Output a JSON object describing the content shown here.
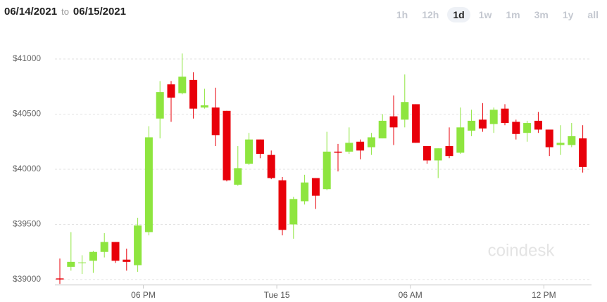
{
  "header": {
    "from": "06/14/2021",
    "to": "to",
    "until": "06/15/2021",
    "ranges": [
      "1h",
      "12h",
      "1d",
      "1w",
      "1m",
      "3m",
      "1y",
      "all"
    ],
    "selected": 2
  },
  "watermark": "coindesk",
  "chart_data": {
    "type": "candlestick",
    "categories": [
      null,
      null,
      null,
      null,
      null,
      null,
      null,
      "06 PM",
      null,
      null,
      null,
      null,
      null,
      null,
      null,
      null,
      null,
      null,
      null,
      "Tue 15",
      null,
      null,
      null,
      null,
      null,
      null,
      null,
      null,
      null,
      null,
      null,
      "06 AM",
      null,
      null,
      null,
      null,
      null,
      null,
      null,
      null,
      null,
      null,
      null,
      "12 PM",
      null,
      null,
      null,
      null
    ],
    "open": [
      39010,
      39115,
      39150,
      39170,
      39250,
      39340,
      39180,
      39130,
      39430,
      40460,
      40770,
      40690,
      40810,
      40560,
      40560,
      40530,
      39860,
      40050,
      40270,
      40130,
      39900,
      39500,
      39710,
      39920,
      39820,
      40160,
      40160,
      40250,
      40200,
      40280,
      40480,
      40450,
      40590,
      40210,
      40080,
      40210,
      40150,
      40350,
      40450,
      40410,
      40550,
      40430,
      40330,
      40440,
      40360,
      40220,
      40220,
      40280
    ],
    "high": [
      39190,
      39430,
      39220,
      39260,
      39420,
      39340,
      39280,
      39560,
      40390,
      40800,
      40800,
      41050,
      40880,
      40730,
      40740,
      40530,
      40210,
      40330,
      40270,
      40170,
      39930,
      39750,
      39950,
      39920,
      40340,
      40230,
      40380,
      40270,
      40330,
      40500,
      40670,
      40860,
      40590,
      40210,
      40190,
      40380,
      40560,
      40540,
      40600,
      40560,
      40590,
      40450,
      40440,
      40520,
      40360,
      40400,
      40420,
      40400
    ],
    "low": [
      38960,
      39080,
      39050,
      39060,
      39200,
      39150,
      39080,
      39070,
      39400,
      40280,
      40430,
      40680,
      40460,
      40550,
      40210,
      39890,
      39850,
      40040,
      40100,
      39910,
      39400,
      39370,
      39680,
      39640,
      39810,
      39980,
      40140,
      40090,
      40130,
      40280,
      40220,
      40380,
      40240,
      40050,
      39920,
      40100,
      40140,
      40300,
      40340,
      40330,
      40400,
      40270,
      40250,
      40330,
      40120,
      40130,
      40200,
      39970
    ],
    "close": [
      39000,
      39160,
      39155,
      39250,
      39340,
      39170,
      39160,
      39490,
      40290,
      40700,
      40650,
      40840,
      40550,
      40580,
      40310,
      39900,
      40010,
      40270,
      40140,
      39920,
      39450,
      39730,
      39880,
      39760,
      40160,
      40150,
      40240,
      40170,
      40290,
      40440,
      40380,
      40610,
      40240,
      40080,
      40190,
      40120,
      40380,
      40440,
      40370,
      40540,
      40420,
      40320,
      40420,
      40360,
      40200,
      40240,
      40300,
      40020
    ],
    "up_color": "#8ee53f",
    "down_color": "#e8000a",
    "ylim": [
      38950,
      41150
    ],
    "yticks": [
      {
        "value": 39000,
        "label": "$39000"
      },
      {
        "value": 39500,
        "label": "$39500"
      },
      {
        "value": 40000,
        "label": "$40000"
      },
      {
        "value": 40500,
        "label": "$40500"
      },
      {
        "value": 41000,
        "label": "$41000"
      }
    ],
    "grid": true
  }
}
